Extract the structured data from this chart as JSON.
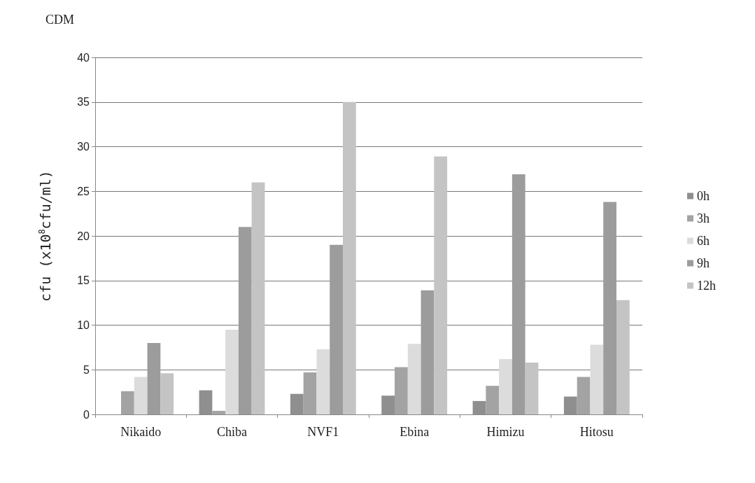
{
  "chart_data": {
    "type": "bar",
    "title": "CDM",
    "ylabel": "cfu (x10$^{8}$cfu/ml)",
    "categories": [
      "Nikaido",
      "Chiba",
      "NVF1",
      "Ebina",
      "Himizu",
      "Hitosu"
    ],
    "series": [
      {
        "name": "0h",
        "color": "#8f8f8f",
        "values": [
          0,
          2.7,
          2.3,
          2.1,
          1.5,
          2.0
        ]
      },
      {
        "name": "3h",
        "color": "#a3a3a3",
        "values": [
          2.6,
          0.4,
          4.7,
          5.3,
          3.2,
          4.2
        ]
      },
      {
        "name": "6h",
        "color": "#dcdcdc",
        "values": [
          4.2,
          9.5,
          7.3,
          7.9,
          6.2,
          7.8
        ]
      },
      {
        "name": "9h",
        "color": "#9c9c9c",
        "values": [
          8.0,
          21,
          19,
          13.9,
          26.9,
          23.8
        ]
      },
      {
        "name": "12h",
        "color": "#c4c4c4",
        "values": [
          4.6,
          26,
          35,
          28.9,
          5.8,
          12.8
        ]
      }
    ],
    "ylim": [
      0,
      40
    ],
    "yticks": [
      0,
      5,
      10,
      15,
      20,
      25,
      30,
      35,
      40
    ],
    "grid": "y",
    "legend": "right"
  }
}
